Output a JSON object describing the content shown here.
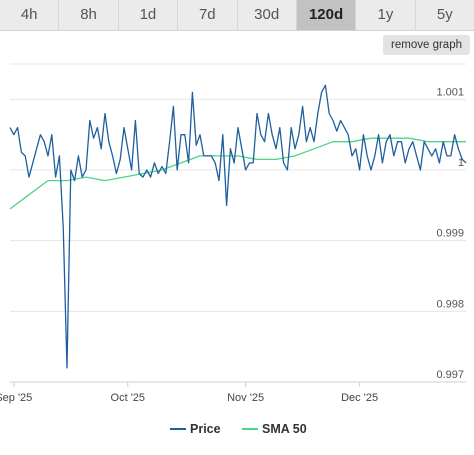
{
  "tabs": [
    {
      "label": "4h"
    },
    {
      "label": "8h"
    },
    {
      "label": "1d"
    },
    {
      "label": "7d"
    },
    {
      "label": "30d"
    },
    {
      "label": "120d",
      "active": true
    },
    {
      "label": "1y"
    },
    {
      "label": "5y"
    }
  ],
  "remove_graph_label": "remove graph",
  "colors": {
    "price": "#1f5f9e",
    "sma": "#4fd389"
  },
  "chart_data": {
    "type": "line",
    "x_ticks": [
      "Sep '25",
      "Oct '25",
      "Nov '25",
      "Dec '25"
    ],
    "x_tick_dates": [
      "2025-09-01",
      "2025-10-01",
      "2025-11-01",
      "2025-12-01"
    ],
    "y_ticks": [
      {
        "value": 1.001,
        "label": "1.001"
      },
      {
        "value": 1.0,
        "label": "1"
      },
      {
        "value": 0.999,
        "label": "0.999"
      },
      {
        "value": 0.998,
        "label": "0.998"
      },
      {
        "value": 0.997,
        "label": "0.997"
      }
    ],
    "ylim": [
      0.997,
      1.0015
    ],
    "xlim": [
      "2025-08-31",
      "2025-12-29"
    ],
    "legend_position": "bottom-center",
    "series": [
      {
        "name": "Price",
        "color": "#1f5f9e",
        "x": [
          "2025-08-31",
          "2025-09-01",
          "2025-09-02",
          "2025-09-03",
          "2025-09-04",
          "2025-09-05",
          "2025-09-06",
          "2025-09-07",
          "2025-09-08",
          "2025-09-09",
          "2025-09-10",
          "2025-09-11",
          "2025-09-12",
          "2025-09-13",
          "2025-09-14",
          "2025-09-15",
          "2025-09-16",
          "2025-09-17",
          "2025-09-18",
          "2025-09-19",
          "2025-09-20",
          "2025-09-21",
          "2025-09-22",
          "2025-09-23",
          "2025-09-24",
          "2025-09-25",
          "2025-09-26",
          "2025-09-27",
          "2025-09-28",
          "2025-09-29",
          "2025-09-30",
          "2025-10-01",
          "2025-10-02",
          "2025-10-03",
          "2025-10-04",
          "2025-10-05",
          "2025-10-06",
          "2025-10-07",
          "2025-10-08",
          "2025-10-09",
          "2025-10-10",
          "2025-10-11",
          "2025-10-12",
          "2025-10-13",
          "2025-10-14",
          "2025-10-15",
          "2025-10-16",
          "2025-10-17",
          "2025-10-18",
          "2025-10-19",
          "2025-10-20",
          "2025-10-21",
          "2025-10-22",
          "2025-10-23",
          "2025-10-24",
          "2025-10-25",
          "2025-10-26",
          "2025-10-27",
          "2025-10-28",
          "2025-10-29",
          "2025-10-30",
          "2025-10-31",
          "2025-11-01",
          "2025-11-02",
          "2025-11-03",
          "2025-11-04",
          "2025-11-05",
          "2025-11-06",
          "2025-11-07",
          "2025-11-08",
          "2025-11-09",
          "2025-11-10",
          "2025-11-11",
          "2025-11-12",
          "2025-11-13",
          "2025-11-14",
          "2025-11-15",
          "2025-11-16",
          "2025-11-17",
          "2025-11-18",
          "2025-11-19",
          "2025-11-20",
          "2025-11-21",
          "2025-11-22",
          "2025-11-23",
          "2025-11-24",
          "2025-11-25",
          "2025-11-26",
          "2025-11-27",
          "2025-11-28",
          "2025-11-29",
          "2025-11-30",
          "2025-12-01",
          "2025-12-02",
          "2025-12-03",
          "2025-12-04",
          "2025-12-05",
          "2025-12-06",
          "2025-12-07",
          "2025-12-08",
          "2025-12-09",
          "2025-12-10",
          "2025-12-11",
          "2025-12-12",
          "2025-12-13",
          "2025-12-14",
          "2025-12-15",
          "2025-12-16",
          "2025-12-17",
          "2025-12-18",
          "2025-12-19",
          "2025-12-20",
          "2025-12-21",
          "2025-12-22",
          "2025-12-23",
          "2025-12-24",
          "2025-12-25",
          "2025-12-26",
          "2025-12-27",
          "2025-12-28",
          "2025-12-29"
        ],
        "values": [
          1.0006,
          1.0005,
          1.0006,
          1.00025,
          1.0002,
          0.9999,
          1.0001,
          1.0003,
          1.0005,
          1.0004,
          1.0002,
          1.0005,
          0.9999,
          1.0002,
          0.9992,
          0.9972,
          1.0,
          0.99985,
          1.0002,
          0.9999,
          1.0,
          1.0007,
          1.00045,
          1.0006,
          1.0003,
          1.0008,
          1.0004,
          1.0002,
          0.99995,
          1.00015,
          1.0006,
          1.0003,
          1.0,
          1.0007,
          0.99995,
          0.9999,
          1.0,
          0.9999,
          1.0001,
          0.99995,
          1.00005,
          0.99995,
          1.0004,
          1.0009,
          1.0,
          1.0005,
          1.0005,
          1.0001,
          1.0011,
          1.00035,
          1.0005,
          1.0002,
          1.0002,
          1.0002,
          1.0001,
          0.99985,
          1.0005,
          0.9995,
          1.0003,
          1.0001,
          1.0006,
          1.0003,
          1.0,
          1.0001,
          1.0001,
          1.0008,
          1.0005,
          1.0004,
          1.0008,
          1.0005,
          1.0003,
          1.0006,
          1.0001,
          1.0,
          1.0006,
          1.0003,
          1.0005,
          1.0009,
          1.0004,
          1.0006,
          1.0004,
          1.0008,
          1.0011,
          1.0012,
          1.0008,
          1.0007,
          1.00055,
          1.0007,
          1.0006,
          1.0005,
          1.0002,
          1.0003,
          1.0,
          1.0005,
          1.0002,
          1.0,
          1.0002,
          1.0005,
          1.0001,
          1.0004,
          1.0005,
          1.0002,
          1.0004,
          1.0004,
          1.0001,
          1.0003,
          1.0004,
          1.0002,
          1.0,
          1.0004,
          1.0003,
          1.0002,
          1.0003,
          1.0001,
          1.0004,
          1.0002,
          1.0002,
          1.0005,
          1.0003,
          1.00015,
          1.0001
        ]
      },
      {
        "name": "SMA 50",
        "color": "#4fd389",
        "x": [
          "2025-08-31",
          "2025-09-05",
          "2025-09-10",
          "2025-09-15",
          "2025-09-20",
          "2025-09-25",
          "2025-09-30",
          "2025-10-05",
          "2025-10-10",
          "2025-10-15",
          "2025-10-20",
          "2025-10-25",
          "2025-10-30",
          "2025-11-04",
          "2025-11-09",
          "2025-11-14",
          "2025-11-19",
          "2025-11-24",
          "2025-11-29",
          "2025-12-04",
          "2025-12-09",
          "2025-12-14",
          "2025-12-19",
          "2025-12-24",
          "2025-12-29"
        ],
        "values": [
          0.99945,
          0.99965,
          0.99985,
          0.99985,
          0.9999,
          0.99985,
          0.9999,
          0.99995,
          1.0,
          1.0001,
          1.0002,
          1.0002,
          1.0002,
          1.00015,
          1.00015,
          1.0002,
          1.0003,
          1.0004,
          1.0004,
          1.00045,
          1.00045,
          1.00045,
          1.0004,
          1.0004,
          1.0004
        ]
      }
    ]
  }
}
